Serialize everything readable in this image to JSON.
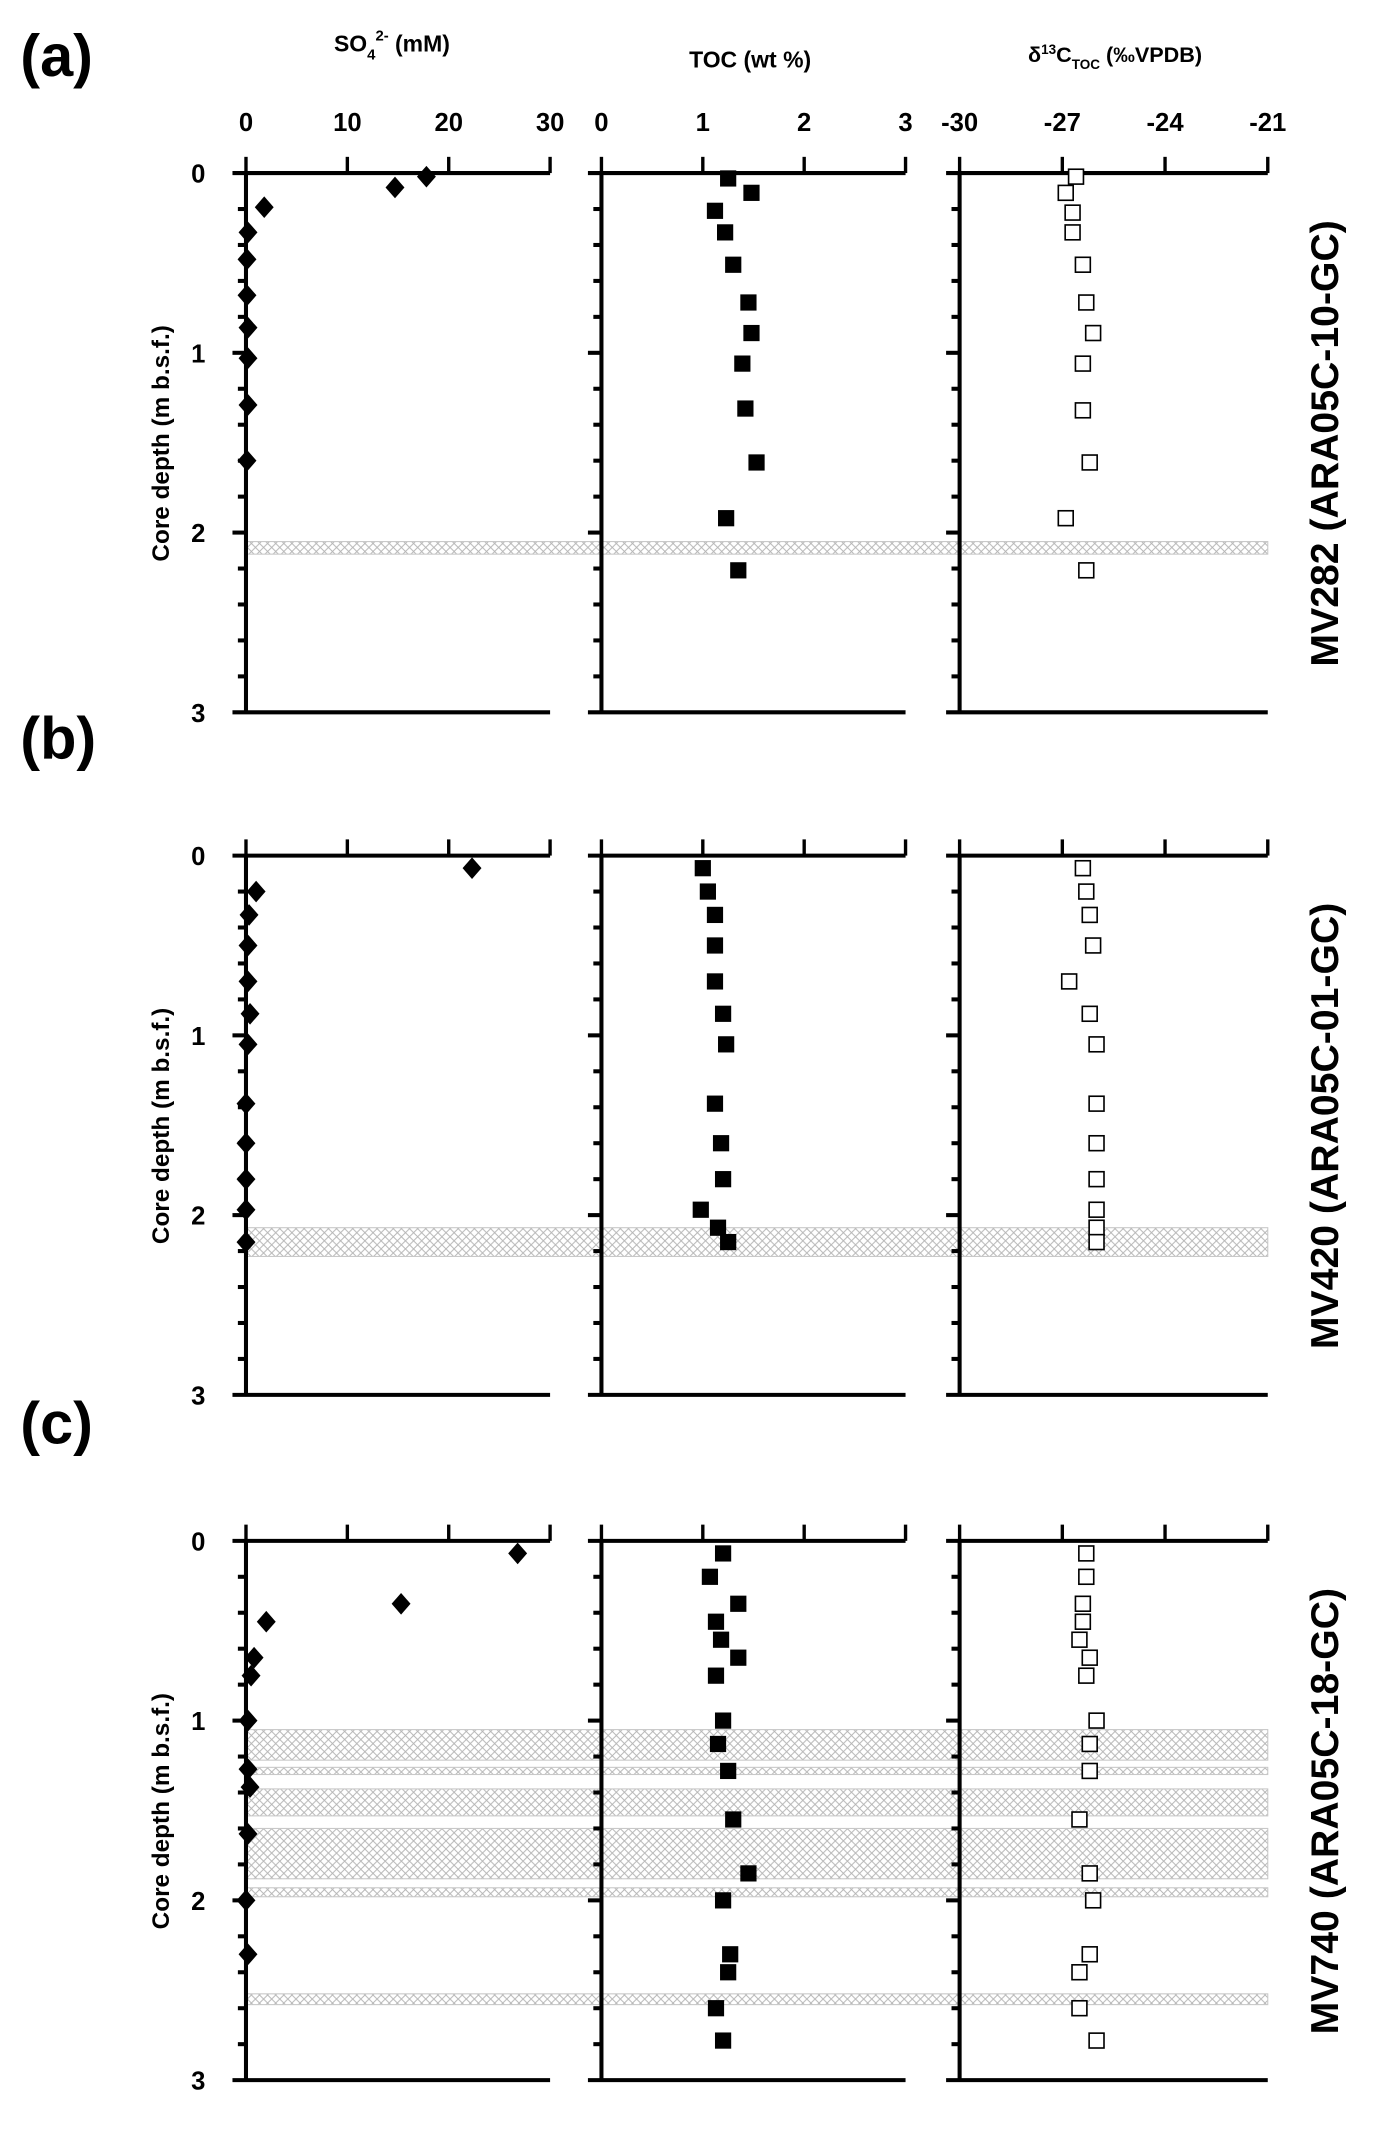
{
  "chart_data": [
    {
      "type": "scatter",
      "panel_label": "(a)",
      "core_label": "MV282 (ARA05C-10-GC)",
      "ylabel": "Core depth (m b.s.f.)",
      "ylim": [
        0,
        3
      ],
      "y_ticks": [
        "0",
        "1",
        "2",
        "3"
      ],
      "hatched_intervals_m": [
        [
          2.05,
          2.12
        ]
      ],
      "series": [
        {
          "xlabel": "SO4 2- (mM)",
          "xlim": [
            0,
            30
          ],
          "x_ticks": [
            "0",
            "10",
            "20",
            "30"
          ],
          "marker": "filled-diamond",
          "points": [
            [
              17.8,
              0.02
            ],
            [
              14.7,
              0.08
            ],
            [
              1.8,
              0.19
            ],
            [
              0.2,
              0.33
            ],
            [
              0.1,
              0.48
            ],
            [
              0.1,
              0.68
            ],
            [
              0.2,
              0.86
            ],
            [
              0.2,
              1.03
            ],
            [
              0.2,
              1.29
            ],
            [
              0.1,
              1.6
            ]
          ]
        },
        {
          "xlabel": "TOC (wt %)",
          "xlim": [
            0,
            3
          ],
          "x_ticks": [
            "0",
            "1",
            "2",
            "3"
          ],
          "marker": "filled-square",
          "points": [
            [
              1.25,
              0.03
            ],
            [
              1.48,
              0.11
            ],
            [
              1.12,
              0.21
            ],
            [
              1.22,
              0.33
            ],
            [
              1.3,
              0.51
            ],
            [
              1.45,
              0.72
            ],
            [
              1.48,
              0.89
            ],
            [
              1.39,
              1.06
            ],
            [
              1.42,
              1.31
            ],
            [
              1.53,
              1.61
            ],
            [
              1.23,
              1.92
            ],
            [
              1.35,
              2.21
            ]
          ]
        },
        {
          "xlabel": "δ13C TOC (‰VPDB)",
          "xlim": [
            -30,
            -21
          ],
          "x_ticks": [
            "-30",
            "-27",
            "-24",
            "-21"
          ],
          "marker": "open-square",
          "points": [
            [
              -26.6,
              0.02
            ],
            [
              -26.9,
              0.11
            ],
            [
              -26.7,
              0.22
            ],
            [
              -26.7,
              0.33
            ],
            [
              -26.4,
              0.51
            ],
            [
              -26.3,
              0.72
            ],
            [
              -26.1,
              0.89
            ],
            [
              -26.4,
              1.06
            ],
            [
              -26.4,
              1.32
            ],
            [
              -26.2,
              1.61
            ],
            [
              -26.9,
              1.92
            ],
            [
              -26.3,
              2.21
            ]
          ]
        }
      ]
    },
    {
      "type": "scatter",
      "panel_label": "(b)",
      "core_label": "MV420 (ARA05C-01-GC)",
      "ylabel": "Core depth (m b.s.f.)",
      "ylim": [
        0,
        3
      ],
      "y_ticks": [
        "0",
        "1",
        "2",
        "3"
      ],
      "hatched_intervals_m": [
        [
          2.07,
          2.23
        ]
      ],
      "series": [
        {
          "xlabel": "SO4 2- (mM)",
          "xlim": [
            0,
            30
          ],
          "marker": "filled-diamond",
          "points": [
            [
              22.3,
              0.07
            ],
            [
              1.0,
              0.2
            ],
            [
              0.3,
              0.33
            ],
            [
              0.2,
              0.5
            ],
            [
              0.2,
              0.7
            ],
            [
              0.4,
              0.88
            ],
            [
              0.2,
              1.05
            ],
            [
              0,
              1.38
            ],
            [
              0,
              1.6
            ],
            [
              0,
              1.8
            ],
            [
              0,
              1.97
            ],
            [
              0,
              2.15
            ]
          ]
        },
        {
          "xlabel": "TOC (wt %)",
          "xlim": [
            0,
            3
          ],
          "marker": "filled-square",
          "points": [
            [
              1.0,
              0.07
            ],
            [
              1.05,
              0.2
            ],
            [
              1.12,
              0.33
            ],
            [
              1.12,
              0.5
            ],
            [
              1.12,
              0.7
            ],
            [
              1.2,
              0.88
            ],
            [
              1.23,
              1.05
            ],
            [
              1.12,
              1.38
            ],
            [
              1.18,
              1.6
            ],
            [
              1.2,
              1.8
            ],
            [
              0.98,
              1.97
            ],
            [
              1.15,
              2.07
            ],
            [
              1.25,
              2.15
            ]
          ]
        },
        {
          "xlabel": "δ13C TOC (‰VPDB)",
          "xlim": [
            -30,
            -21
          ],
          "marker": "open-square",
          "points": [
            [
              -26.4,
              0.07
            ],
            [
              -26.3,
              0.2
            ],
            [
              -26.2,
              0.33
            ],
            [
              -26.1,
              0.5
            ],
            [
              -26.8,
              0.7
            ],
            [
              -26.2,
              0.88
            ],
            [
              -26.0,
              1.05
            ],
            [
              -26.0,
              1.38
            ],
            [
              -26.0,
              1.6
            ],
            [
              -26.0,
              1.8
            ],
            [
              -26.0,
              1.97
            ],
            [
              -26.0,
              2.07
            ],
            [
              -26.0,
              2.15
            ]
          ]
        }
      ]
    },
    {
      "type": "scatter",
      "panel_label": "(c)",
      "core_label": "MV740 (ARA05C-18-GC)",
      "ylabel": "Core depth (m b.s.f.)",
      "ylim": [
        0,
        3
      ],
      "y_ticks": [
        "0",
        "1",
        "2",
        "3"
      ],
      "hatched_intervals_m": [
        [
          1.05,
          1.22
        ],
        [
          1.26,
          1.3
        ],
        [
          1.38,
          1.53
        ],
        [
          1.6,
          1.88
        ],
        [
          1.93,
          1.98
        ],
        [
          2.52,
          2.58
        ]
      ],
      "series": [
        {
          "xlabel": "SO4 2- (mM)",
          "xlim": [
            0,
            30
          ],
          "marker": "filled-diamond",
          "points": [
            [
              26.8,
              0.07
            ],
            [
              15.3,
              0.35
            ],
            [
              2.0,
              0.45
            ],
            [
              0.8,
              0.65
            ],
            [
              0.5,
              0.75
            ],
            [
              0.2,
              1.0
            ],
            [
              0.2,
              1.27
            ],
            [
              0.4,
              1.37
            ],
            [
              0.2,
              1.63
            ],
            [
              0,
              2.0
            ],
            [
              0.2,
              2.3
            ]
          ]
        },
        {
          "xlabel": "TOC (wt %)",
          "xlim": [
            0,
            3
          ],
          "marker": "filled-square",
          "points": [
            [
              1.2,
              0.07
            ],
            [
              1.07,
              0.2
            ],
            [
              1.35,
              0.35
            ],
            [
              1.13,
              0.45
            ],
            [
              1.18,
              0.55
            ],
            [
              1.35,
              0.65
            ],
            [
              1.13,
              0.75
            ],
            [
              1.2,
              1.0
            ],
            [
              1.15,
              1.13
            ],
            [
              1.25,
              1.28
            ],
            [
              1.3,
              1.55
            ],
            [
              1.45,
              1.85
            ],
            [
              1.2,
              2.0
            ],
            [
              1.27,
              2.3
            ],
            [
              1.25,
              2.4
            ],
            [
              1.13,
              2.6
            ],
            [
              1.2,
              2.78
            ]
          ]
        },
        {
          "xlabel": "δ13C TOC (‰VPDB)",
          "xlim": [
            -30,
            -21
          ],
          "marker": "open-square",
          "points": [
            [
              -26.3,
              0.07
            ],
            [
              -26.3,
              0.2
            ],
            [
              -26.4,
              0.35
            ],
            [
              -26.4,
              0.45
            ],
            [
              -26.5,
              0.55
            ],
            [
              -26.2,
              0.65
            ],
            [
              -26.3,
              0.75
            ],
            [
              -26.0,
              1.0
            ],
            [
              -26.2,
              1.13
            ],
            [
              -26.2,
              1.28
            ],
            [
              -26.5,
              1.55
            ],
            [
              -26.2,
              1.85
            ],
            [
              -26.1,
              2.0
            ],
            [
              -26.2,
              2.3
            ],
            [
              -26.5,
              2.4
            ],
            [
              -26.5,
              2.6
            ],
            [
              -26.0,
              2.78
            ]
          ]
        }
      ]
    }
  ],
  "headers": {
    "so4": {
      "main": "SO",
      "sub": "4",
      "sup": "2-",
      "unit": " (mM)"
    },
    "toc": "TOC (wt %)",
    "d13c": {
      "delta": "δ",
      "sup": "13",
      "main": "C",
      "sub": "TOC",
      "unit": " (‰VPDB)"
    }
  },
  "colors": {
    "axis": "#000000",
    "hatch": "#bbbbbb",
    "marker": "#000000"
  }
}
